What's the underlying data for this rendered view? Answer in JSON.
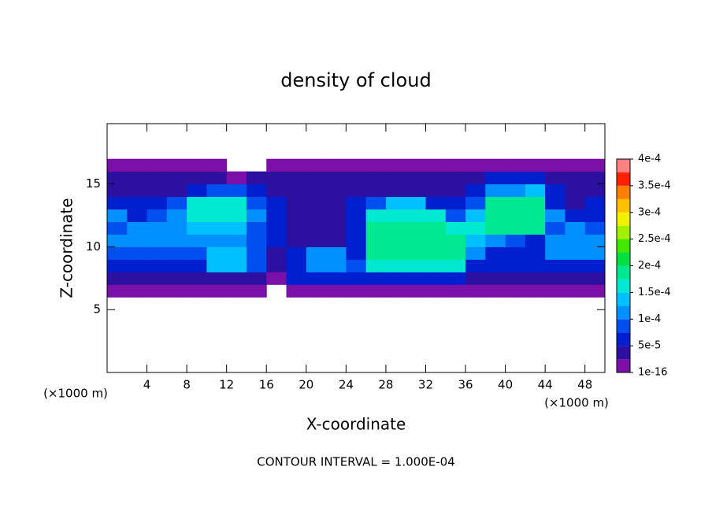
{
  "chart_data": {
    "type": "contourf",
    "title": "density of cloud",
    "x_label": "X-coordinate",
    "y_label": "Z-coordinate",
    "x_unit_left": "(×1000 m)",
    "x_unit_right": "(×1000 m)",
    "note": "CONTOUR INTERVAL = 1.000E-04",
    "xlim": [
      0,
      50
    ],
    "ylim": [
      0,
      19.8
    ],
    "xticks": [
      4,
      8,
      12,
      16,
      20,
      24,
      28,
      32,
      36,
      40,
      44,
      48
    ],
    "yticks": [
      5,
      10,
      15
    ],
    "x_edges": [
      0,
      2,
      4,
      6,
      8,
      10,
      12,
      14,
      16,
      18,
      20,
      22,
      24,
      26,
      28,
      30,
      32,
      34,
      36,
      38,
      40,
      42,
      44,
      46,
      48,
      50
    ],
    "z_edges": [
      6,
      7,
      8,
      9,
      10,
      11,
      12,
      13,
      14,
      15,
      16,
      17
    ],
    "values": [
      [
        1e-05,
        1e-05,
        1e-05,
        1e-05,
        1e-05,
        1e-05,
        1e-05,
        1e-05,
        null,
        1e-05,
        1e-05,
        1e-05,
        1e-05,
        1e-05,
        1e-05,
        1e-05,
        1e-05,
        1e-05,
        1e-05,
        1e-05,
        1e-05,
        1e-05,
        1e-05,
        1e-05,
        1e-05
      ],
      [
        3e-05,
        3e-05,
        3e-05,
        3e-05,
        3e-05,
        3e-05,
        3e-05,
        3e-05,
        1e-05,
        5e-05,
        5e-05,
        5e-05,
        5e-05,
        6e-05,
        6e-05,
        6e-05,
        6e-05,
        6e-05,
        3e-05,
        3e-05,
        3e-05,
        3e-05,
        3e-05,
        3e-05,
        3e-05
      ],
      [
        5e-05,
        5e-05,
        5e-05,
        5e-05,
        6e-05,
        0.00013,
        0.00013,
        8e-05,
        4e-05,
        7e-05,
        0.0001,
        0.0001,
        8e-05,
        0.00017,
        0.00017,
        0.00017,
        0.00017,
        0.00017,
        7e-05,
        5e-05,
        5e-05,
        5e-05,
        6e-05,
        6e-05,
        6e-05
      ],
      [
        8e-05,
        8e-05,
        8e-05,
        8e-05,
        9e-05,
        0.00014,
        0.00014,
        9e-05,
        4e-05,
        6e-05,
        0.0001,
        0.0001,
        6e-05,
        0.00018,
        0.00018,
        0.00018,
        0.00018,
        0.00018,
        0.00011,
        7e-05,
        6e-05,
        7e-05,
        0.0001,
        0.0001,
        0.0001
      ],
      [
        0.0001,
        0.0001,
        0.0001,
        0.00011,
        0.00012,
        0.00012,
        0.00012,
        8e-05,
        5e-05,
        4e-05,
        4e-05,
        4e-05,
        5e-05,
        0.00019,
        0.00019,
        0.00019,
        0.00019,
        0.00019,
        0.00014,
        0.0001,
        8e-05,
        7e-05,
        0.00011,
        0.00012,
        0.0001
      ],
      [
        9e-05,
        0.00011,
        0.00011,
        0.00011,
        0.00014,
        0.00014,
        0.00014,
        9e-05,
        5e-05,
        4e-05,
        4e-05,
        4e-05,
        6e-05,
        0.00019,
        0.00019,
        0.00019,
        0.00019,
        0.00016,
        0.00015,
        0.00018,
        0.00018,
        0.00018,
        9e-05,
        0.0001,
        8e-05
      ],
      [
        0.0001,
        7e-05,
        8e-05,
        0.00012,
        0.00016,
        0.00016,
        0.00016,
        0.0001,
        5e-05,
        4e-05,
        4e-05,
        4e-05,
        6e-05,
        0.00017,
        0.00017,
        0.00017,
        0.00017,
        8e-05,
        0.00014,
        0.00019,
        0.00019,
        0.00019,
        0.00012,
        7e-05,
        5e-05
      ],
      [
        6e-05,
        5e-05,
        5e-05,
        8e-05,
        0.00016,
        0.00016,
        0.00016,
        9e-05,
        5e-05,
        4e-05,
        4e-05,
        4e-05,
        6e-05,
        9e-05,
        0.00014,
        0.00014,
        7e-05,
        5e-05,
        8e-05,
        0.00018,
        0.00018,
        0.00018,
        7e-05,
        4e-05,
        5e-05
      ],
      [
        4e-05,
        4e-05,
        4e-05,
        4e-05,
        7e-05,
        9e-05,
        9e-05,
        5e-05,
        4e-05,
        4e-05,
        4e-05,
        4e-05,
        4e-05,
        4e-05,
        4e-05,
        4e-05,
        4e-05,
        3e-05,
        5e-05,
        0.00012,
        0.00012,
        0.00013,
        5e-05,
        3e-05,
        3e-05
      ],
      [
        3e-05,
        3e-05,
        3e-05,
        3e-05,
        3e-05,
        3e-05,
        2e-05,
        3e-05,
        3e-05,
        3e-05,
        3e-05,
        3e-05,
        3e-05,
        3e-05,
        3e-05,
        3e-05,
        3e-05,
        3e-05,
        3e-05,
        5e-05,
        5e-05,
        5e-05,
        3e-05,
        3e-05,
        3e-05
      ],
      [
        1e-05,
        1e-05,
        1e-05,
        1e-05,
        1e-05,
        1e-05,
        null,
        null,
        1e-05,
        1e-05,
        1e-05,
        1e-05,
        1e-05,
        1e-05,
        1e-05,
        1e-05,
        1e-05,
        1e-05,
        1e-05,
        1e-05,
        1e-05,
        1e-05,
        1e-05,
        1e-05,
        1e-05
      ]
    ],
    "levels": [
      1e-16,
      2.5e-05,
      5e-05,
      7.5e-05,
      0.0001,
      0.000125,
      0.00015,
      0.000175,
      0.0002,
      0.000225,
      0.00025,
      0.000275,
      0.0003,
      0.000325,
      0.00035,
      0.000375,
      0.0004
    ],
    "colors": [
      "#7a10a8",
      "#2c10a0",
      "#0020d0",
      "#0050f0",
      "#0090ff",
      "#00c0ff",
      "#00e8d0",
      "#00e890",
      "#00e040",
      "#40e800",
      "#a0f000",
      "#f0f000",
      "#ffc000",
      "#ff8000",
      "#ff2000",
      "#ff8080"
    ],
    "colorbar_ticks": [
      {
        "value": 1e-16,
        "label": "1e-16"
      },
      {
        "value": 5e-05,
        "label": "5e-5"
      },
      {
        "value": 0.0001,
        "label": "1e-4"
      },
      {
        "value": 0.00015,
        "label": "1.5e-4"
      },
      {
        "value": 0.0002,
        "label": "2e-4"
      },
      {
        "value": 0.00025,
        "label": "2.5e-4"
      },
      {
        "value": 0.0003,
        "label": "3e-4"
      },
      {
        "value": 0.00035,
        "label": "3.5e-4"
      },
      {
        "value": 0.0004,
        "label": "4e-4"
      }
    ]
  }
}
